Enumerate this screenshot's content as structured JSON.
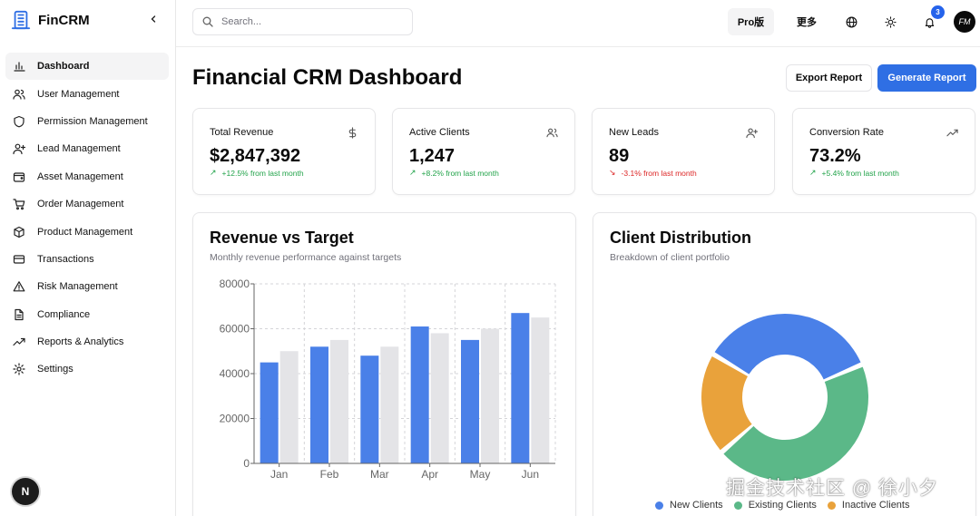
{
  "brand": {
    "name": "FinCRM"
  },
  "sidebar": {
    "items": [
      {
        "label": "Dashboard",
        "icon": "bar-chart-icon",
        "active": true
      },
      {
        "label": "User Management",
        "icon": "users-icon"
      },
      {
        "label": "Permission Management",
        "icon": "shield-icon"
      },
      {
        "label": "Lead Management",
        "icon": "user-plus-icon"
      },
      {
        "label": "Asset Management",
        "icon": "wallet-icon"
      },
      {
        "label": "Order Management",
        "icon": "cart-icon"
      },
      {
        "label": "Product Management",
        "icon": "package-icon"
      },
      {
        "label": "Transactions",
        "icon": "credit-card-icon"
      },
      {
        "label": "Risk Management",
        "icon": "alert-triangle-icon"
      },
      {
        "label": "Compliance",
        "icon": "file-text-icon"
      },
      {
        "label": "Reports & Analytics",
        "icon": "trending-up-icon"
      },
      {
        "label": "Settings",
        "icon": "gear-icon"
      }
    ],
    "footer_badge": "N"
  },
  "header": {
    "search_placeholder": "Search...",
    "pro_label": "Pro版",
    "more_label": "更多",
    "notification_count": "3",
    "avatar_initials": "FM"
  },
  "page": {
    "title": "Financial CRM Dashboard",
    "export_label": "Export Report",
    "generate_label": "Generate Report"
  },
  "stats": [
    {
      "label": "Total Revenue",
      "value": "$2,847,392",
      "change": "+12.5% from last month",
      "direction": "up",
      "icon": "dollar-icon"
    },
    {
      "label": "Active Clients",
      "value": "1,247",
      "change": "+8.2% from last month",
      "direction": "up",
      "icon": "users-icon"
    },
    {
      "label": "New Leads",
      "value": "89",
      "change": "-3.1% from last month",
      "direction": "down",
      "icon": "user-plus-icon"
    },
    {
      "label": "Conversion Rate",
      "value": "73.2%",
      "change": "+5.4% from last month",
      "direction": "up",
      "icon": "trending-up-icon"
    }
  ],
  "revenue_chart": {
    "title": "Revenue vs Target",
    "subtitle": "Monthly revenue performance against targets"
  },
  "distribution_chart": {
    "title": "Client Distribution",
    "subtitle": "Breakdown of client portfolio"
  },
  "watermark": "掘金技术社区 @ 徐小夕",
  "colors": {
    "blue": "#4a80e8",
    "green": "#5bb888",
    "orange": "#e9a23b",
    "target_gray": "#e4e4e7",
    "primary_button": "#2f6fe4"
  },
  "chart_data": [
    {
      "type": "bar",
      "title": "Revenue vs Target",
      "categories": [
        "Jan",
        "Feb",
        "Mar",
        "Apr",
        "May",
        "Jun"
      ],
      "series": [
        {
          "name": "Revenue",
          "values": [
            45000,
            52000,
            48000,
            61000,
            55000,
            67000
          ]
        },
        {
          "name": "Target",
          "values": [
            50000,
            55000,
            52000,
            58000,
            60000,
            65000
          ]
        }
      ],
      "yticks": [
        "0",
        "20000",
        "40000",
        "60000",
        "80000"
      ],
      "ylim": [
        0,
        80000
      ],
      "grid": true
    },
    {
      "type": "pie",
      "title": "Client Distribution",
      "labels": [
        "New Clients",
        "Existing Clients",
        "Inactive Clients"
      ],
      "values": [
        35,
        45,
        20
      ],
      "legend": "bottom"
    }
  ]
}
